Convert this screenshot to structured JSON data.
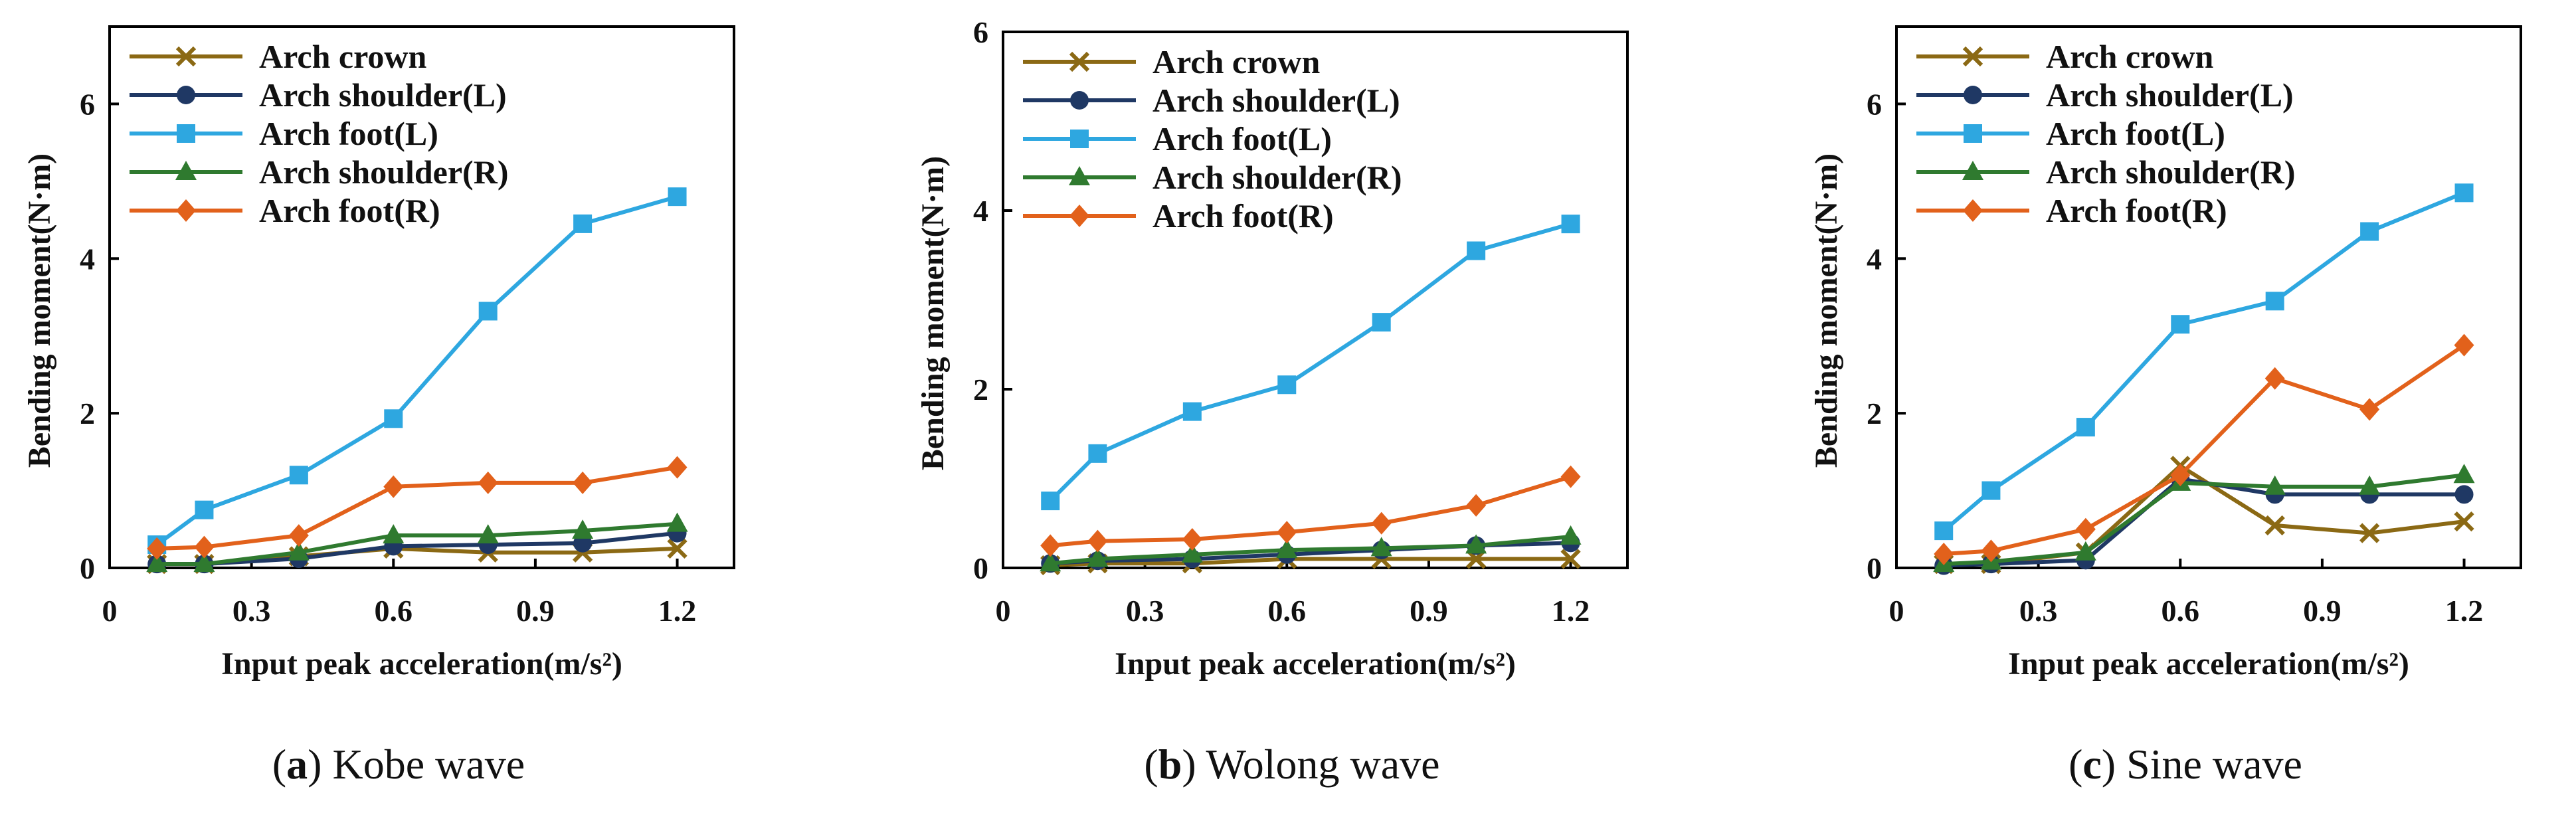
{
  "chart_data": [
    {
      "type": "line",
      "caption_letter": "a",
      "caption_text": " Kobe wave",
      "xlabel": "Input peak acceleration(m/s²)",
      "ylabel": "Bending moment(N·m)",
      "xlim": [
        0,
        1.32
      ],
      "ylim": [
        0,
        7
      ],
      "xticks": [
        0,
        0.3,
        0.6,
        0.9,
        1.2
      ],
      "xtick_labels": [
        "0",
        "0.3",
        "0.6",
        "0.9",
        "1.2"
      ],
      "yticks": [
        0,
        2,
        4,
        6
      ],
      "ytick_labels": [
        "0",
        "2",
        "4",
        "6"
      ],
      "x": [
        0.1,
        0.2,
        0.4,
        0.6,
        0.8,
        1.0,
        1.2
      ],
      "legend_position": "top-left",
      "series": [
        {
          "name": "Arch crown",
          "marker": "x",
          "color": "#8B6914",
          "values": [
            0.05,
            0.05,
            0.15,
            0.25,
            0.2,
            0.2,
            0.25
          ]
        },
        {
          "name": "Arch shoulder(L)",
          "marker": "circle",
          "color": "#1F3864",
          "values": [
            0.05,
            0.05,
            0.12,
            0.28,
            0.3,
            0.32,
            0.45
          ]
        },
        {
          "name": "Arch foot(L)",
          "marker": "square",
          "color": "#2EA7E0",
          "values": [
            0.3,
            0.75,
            1.2,
            1.93,
            3.32,
            4.45,
            4.8
          ]
        },
        {
          "name": "Arch shoulder(R)",
          "marker": "triangle",
          "color": "#2F7A2F",
          "values": [
            0.05,
            0.05,
            0.2,
            0.42,
            0.42,
            0.48,
            0.57
          ]
        },
        {
          "name": "Arch foot(R)",
          "marker": "diamond",
          "color": "#E2611B",
          "values": [
            0.25,
            0.27,
            0.42,
            1.05,
            1.1,
            1.1,
            1.3
          ]
        }
      ]
    },
    {
      "type": "line",
      "caption_letter": "b",
      "caption_text": " Wolong wave",
      "xlabel": "Input peak acceleration(m/s²)",
      "ylabel": "Bending moment(N·m)",
      "xlim": [
        0,
        1.32
      ],
      "ylim": [
        0,
        6
      ],
      "xticks": [
        0,
        0.3,
        0.6,
        0.9,
        1.2
      ],
      "xtick_labels": [
        "0",
        "0.3",
        "0.6",
        "0.9",
        "1.2"
      ],
      "yticks": [
        0,
        2,
        4,
        6
      ],
      "ytick_labels": [
        "0",
        "2",
        "4",
        "6"
      ],
      "x": [
        0.1,
        0.2,
        0.4,
        0.6,
        0.8,
        1.0,
        1.2
      ],
      "legend_position": "top-left",
      "series": [
        {
          "name": "Arch crown",
          "marker": "x",
          "color": "#8B6914",
          "values": [
            0.03,
            0.05,
            0.05,
            0.1,
            0.1,
            0.1,
            0.1
          ]
        },
        {
          "name": "Arch shoulder(L)",
          "marker": "circle",
          "color": "#1F3864",
          "values": [
            0.05,
            0.08,
            0.1,
            0.15,
            0.2,
            0.25,
            0.28
          ]
        },
        {
          "name": "Arch foot(L)",
          "marker": "square",
          "color": "#2EA7E0",
          "values": [
            0.75,
            1.28,
            1.75,
            2.05,
            2.75,
            3.55,
            3.85
          ]
        },
        {
          "name": "Arch shoulder(R)",
          "marker": "triangle",
          "color": "#2F7A2F",
          "values": [
            0.05,
            0.1,
            0.15,
            0.2,
            0.22,
            0.25,
            0.35
          ]
        },
        {
          "name": "Arch foot(R)",
          "marker": "diamond",
          "color": "#E2611B",
          "values": [
            0.25,
            0.3,
            0.32,
            0.4,
            0.5,
            0.7,
            1.02
          ]
        }
      ]
    },
    {
      "type": "line",
      "caption_letter": "c",
      "caption_text": " Sine wave",
      "xlabel": "Input peak acceleration(m/s²)",
      "ylabel": "Bending moment(N·m)",
      "xlim": [
        0,
        1.32
      ],
      "ylim": [
        0,
        7
      ],
      "xticks": [
        0,
        0.3,
        0.6,
        0.9,
        1.2
      ],
      "xtick_labels": [
        "0",
        "0.3",
        "0.6",
        "0.9",
        "1.2"
      ],
      "yticks": [
        0,
        2,
        4,
        6
      ],
      "ytick_labels": [
        "0",
        "2",
        "4",
        "6"
      ],
      "x": [
        0.1,
        0.2,
        0.4,
        0.6,
        0.8,
        1.0,
        1.2
      ],
      "legend_position": "top-left",
      "series": [
        {
          "name": "Arch crown",
          "marker": "x",
          "color": "#8B6914",
          "values": [
            0.05,
            0.05,
            0.2,
            1.32,
            0.55,
            0.45,
            0.6
          ]
        },
        {
          "name": "Arch shoulder(L)",
          "marker": "circle",
          "color": "#1F3864",
          "values": [
            0.03,
            0.05,
            0.1,
            1.15,
            0.95,
            0.95,
            0.95
          ]
        },
        {
          "name": "Arch foot(L)",
          "marker": "square",
          "color": "#2EA7E0",
          "values": [
            0.48,
            1.0,
            1.82,
            3.15,
            3.45,
            4.35,
            4.85
          ]
        },
        {
          "name": "Arch shoulder(R)",
          "marker": "triangle",
          "color": "#2F7A2F",
          "values": [
            0.05,
            0.08,
            0.2,
            1.1,
            1.05,
            1.05,
            1.2
          ]
        },
        {
          "name": "Arch foot(R)",
          "marker": "diamond",
          "color": "#E2611B",
          "values": [
            0.18,
            0.22,
            0.5,
            1.2,
            2.45,
            2.05,
            2.88
          ]
        }
      ]
    }
  ]
}
